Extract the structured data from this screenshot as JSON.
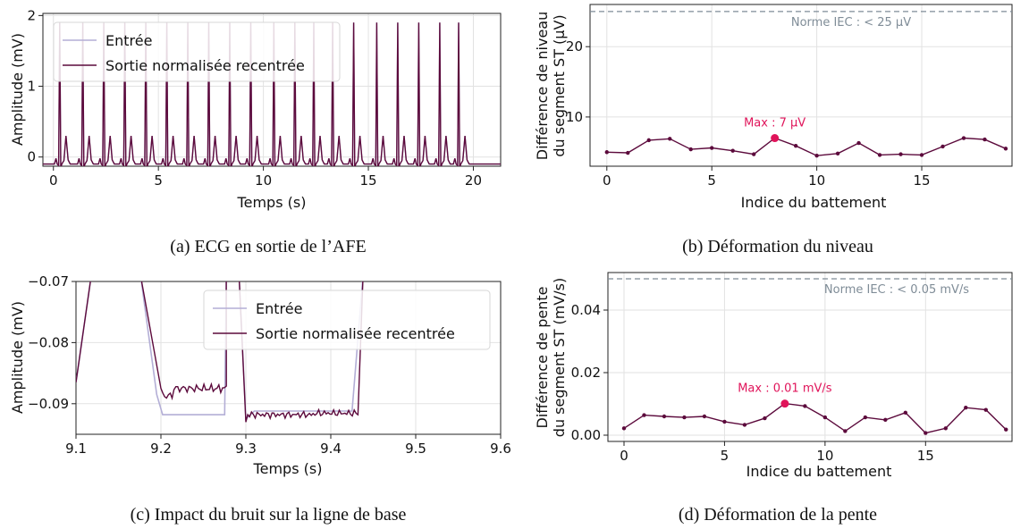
{
  "colors": {
    "input": "#b3aed6",
    "output": "#5c0a3c",
    "highlight": "#e0145a",
    "norm": "#7f8c97"
  },
  "chart_data": [
    {
      "id": "a",
      "type": "line",
      "caption": "(a) ECG en sortie de l’AFE",
      "xlabel": "Temps (s)",
      "ylabel": "Amplitude (mV)",
      "xlim": [
        -0.5,
        21.3
      ],
      "ylim": [
        -0.13,
        2.03
      ],
      "xticks": [
        0,
        5,
        10,
        15,
        20
      ],
      "yticks": [
        0,
        1,
        2
      ],
      "legend": {
        "position": "top-left",
        "labels": [
          "Entrée",
          "Sortie normalisée recentrée"
        ]
      },
      "r_peak_times": [
        0.3,
        1.4,
        2.4,
        3.4,
        4.4,
        5.4,
        6.4,
        7.4,
        8.4,
        9.4,
        10.5,
        11.5,
        12.4,
        13.3,
        14.3,
        15.4,
        16.4,
        17.4,
        18.4,
        19.3
      ],
      "r_peak_amplitude": 1.9,
      "t_wave_amplitude": 0.3,
      "baseline": -0.1,
      "grid": true
    },
    {
      "id": "b",
      "type": "line",
      "caption": "(b) Déformation du niveau",
      "xlabel": "Indice du battement",
      "ylabel": [
        "Différence de niveau",
        "du segment ST (µV)"
      ],
      "xlim": [
        -0.8,
        19.3
      ],
      "ylim": [
        3,
        26
      ],
      "xticks": [
        0,
        5,
        10,
        15
      ],
      "yticks": [
        10,
        20
      ],
      "x": [
        0,
        1,
        2,
        3,
        4,
        5,
        6,
        7,
        8,
        9,
        10,
        11,
        12,
        13,
        14,
        15,
        16,
        17,
        18,
        19
      ],
      "values": [
        5.0,
        4.9,
        6.7,
        6.9,
        5.4,
        5.6,
        5.2,
        4.7,
        7.0,
        5.9,
        4.5,
        4.8,
        6.3,
        4.6,
        4.7,
        4.6,
        5.8,
        7.0,
        6.8,
        5.5
      ],
      "max_index": 8,
      "max_label": "Max : 7 µV",
      "norm_value": 25,
      "norm_label": "Norme IEC : < 25 µV",
      "grid": true
    },
    {
      "id": "c",
      "type": "line",
      "caption": "(c) Impact du bruit sur la ligne de base",
      "xlabel": "Temps (s)",
      "ylabel": "Amplitude (mV)",
      "xlim": [
        9.1,
        9.6
      ],
      "ylim": [
        -0.095,
        -0.07
      ],
      "xticks": [
        9.1,
        9.2,
        9.3,
        9.4,
        9.5,
        9.6
      ],
      "yticks": [
        -0.07,
        -0.08,
        -0.09
      ],
      "ytick_labels": [
        "−0.07",
        "−0.08",
        "−0.09"
      ],
      "legend": {
        "position": "top-right",
        "labels": [
          "Entrée",
          "Sortie normalisée recentrée"
        ]
      },
      "segments": [
        {
          "x_start": 9.205,
          "x_end": 9.275,
          "input_level": -0.0918,
          "output_level": -0.0875
        },
        {
          "x_start": 9.33,
          "x_end": 9.435,
          "input_level": -0.0918,
          "output_level": -0.0918
        }
      ],
      "grid": true
    },
    {
      "id": "d",
      "type": "line",
      "caption": "(d) Déformation de la pente",
      "xlabel": "Indice du battement",
      "ylabel": [
        "Différence de pente",
        "du segment ST (mV/s)"
      ],
      "xlim": [
        -0.8,
        19.3
      ],
      "ylim": [
        -0.002,
        0.052
      ],
      "xticks": [
        0,
        5,
        10,
        15
      ],
      "yticks": [
        0.0,
        0.02,
        0.04
      ],
      "ytick_labels": [
        "0.00",
        "0.02",
        "0.04"
      ],
      "x": [
        0,
        1,
        2,
        3,
        4,
        5,
        6,
        7,
        8,
        9,
        10,
        11,
        12,
        13,
        14,
        15,
        16,
        17,
        18,
        19
      ],
      "values": [
        0.0022,
        0.0064,
        0.006,
        0.0057,
        0.006,
        0.0043,
        0.0033,
        0.0054,
        0.0101,
        0.0093,
        0.0057,
        0.0013,
        0.0057,
        0.0049,
        0.0072,
        0.0007,
        0.0022,
        0.0088,
        0.0081,
        0.0018
      ],
      "max_index": 8,
      "max_label": "Max : 0.01 mV/s",
      "norm_value": 0.05,
      "norm_label": "Norme IEC : < 0.05 mV/s",
      "grid": true
    }
  ]
}
